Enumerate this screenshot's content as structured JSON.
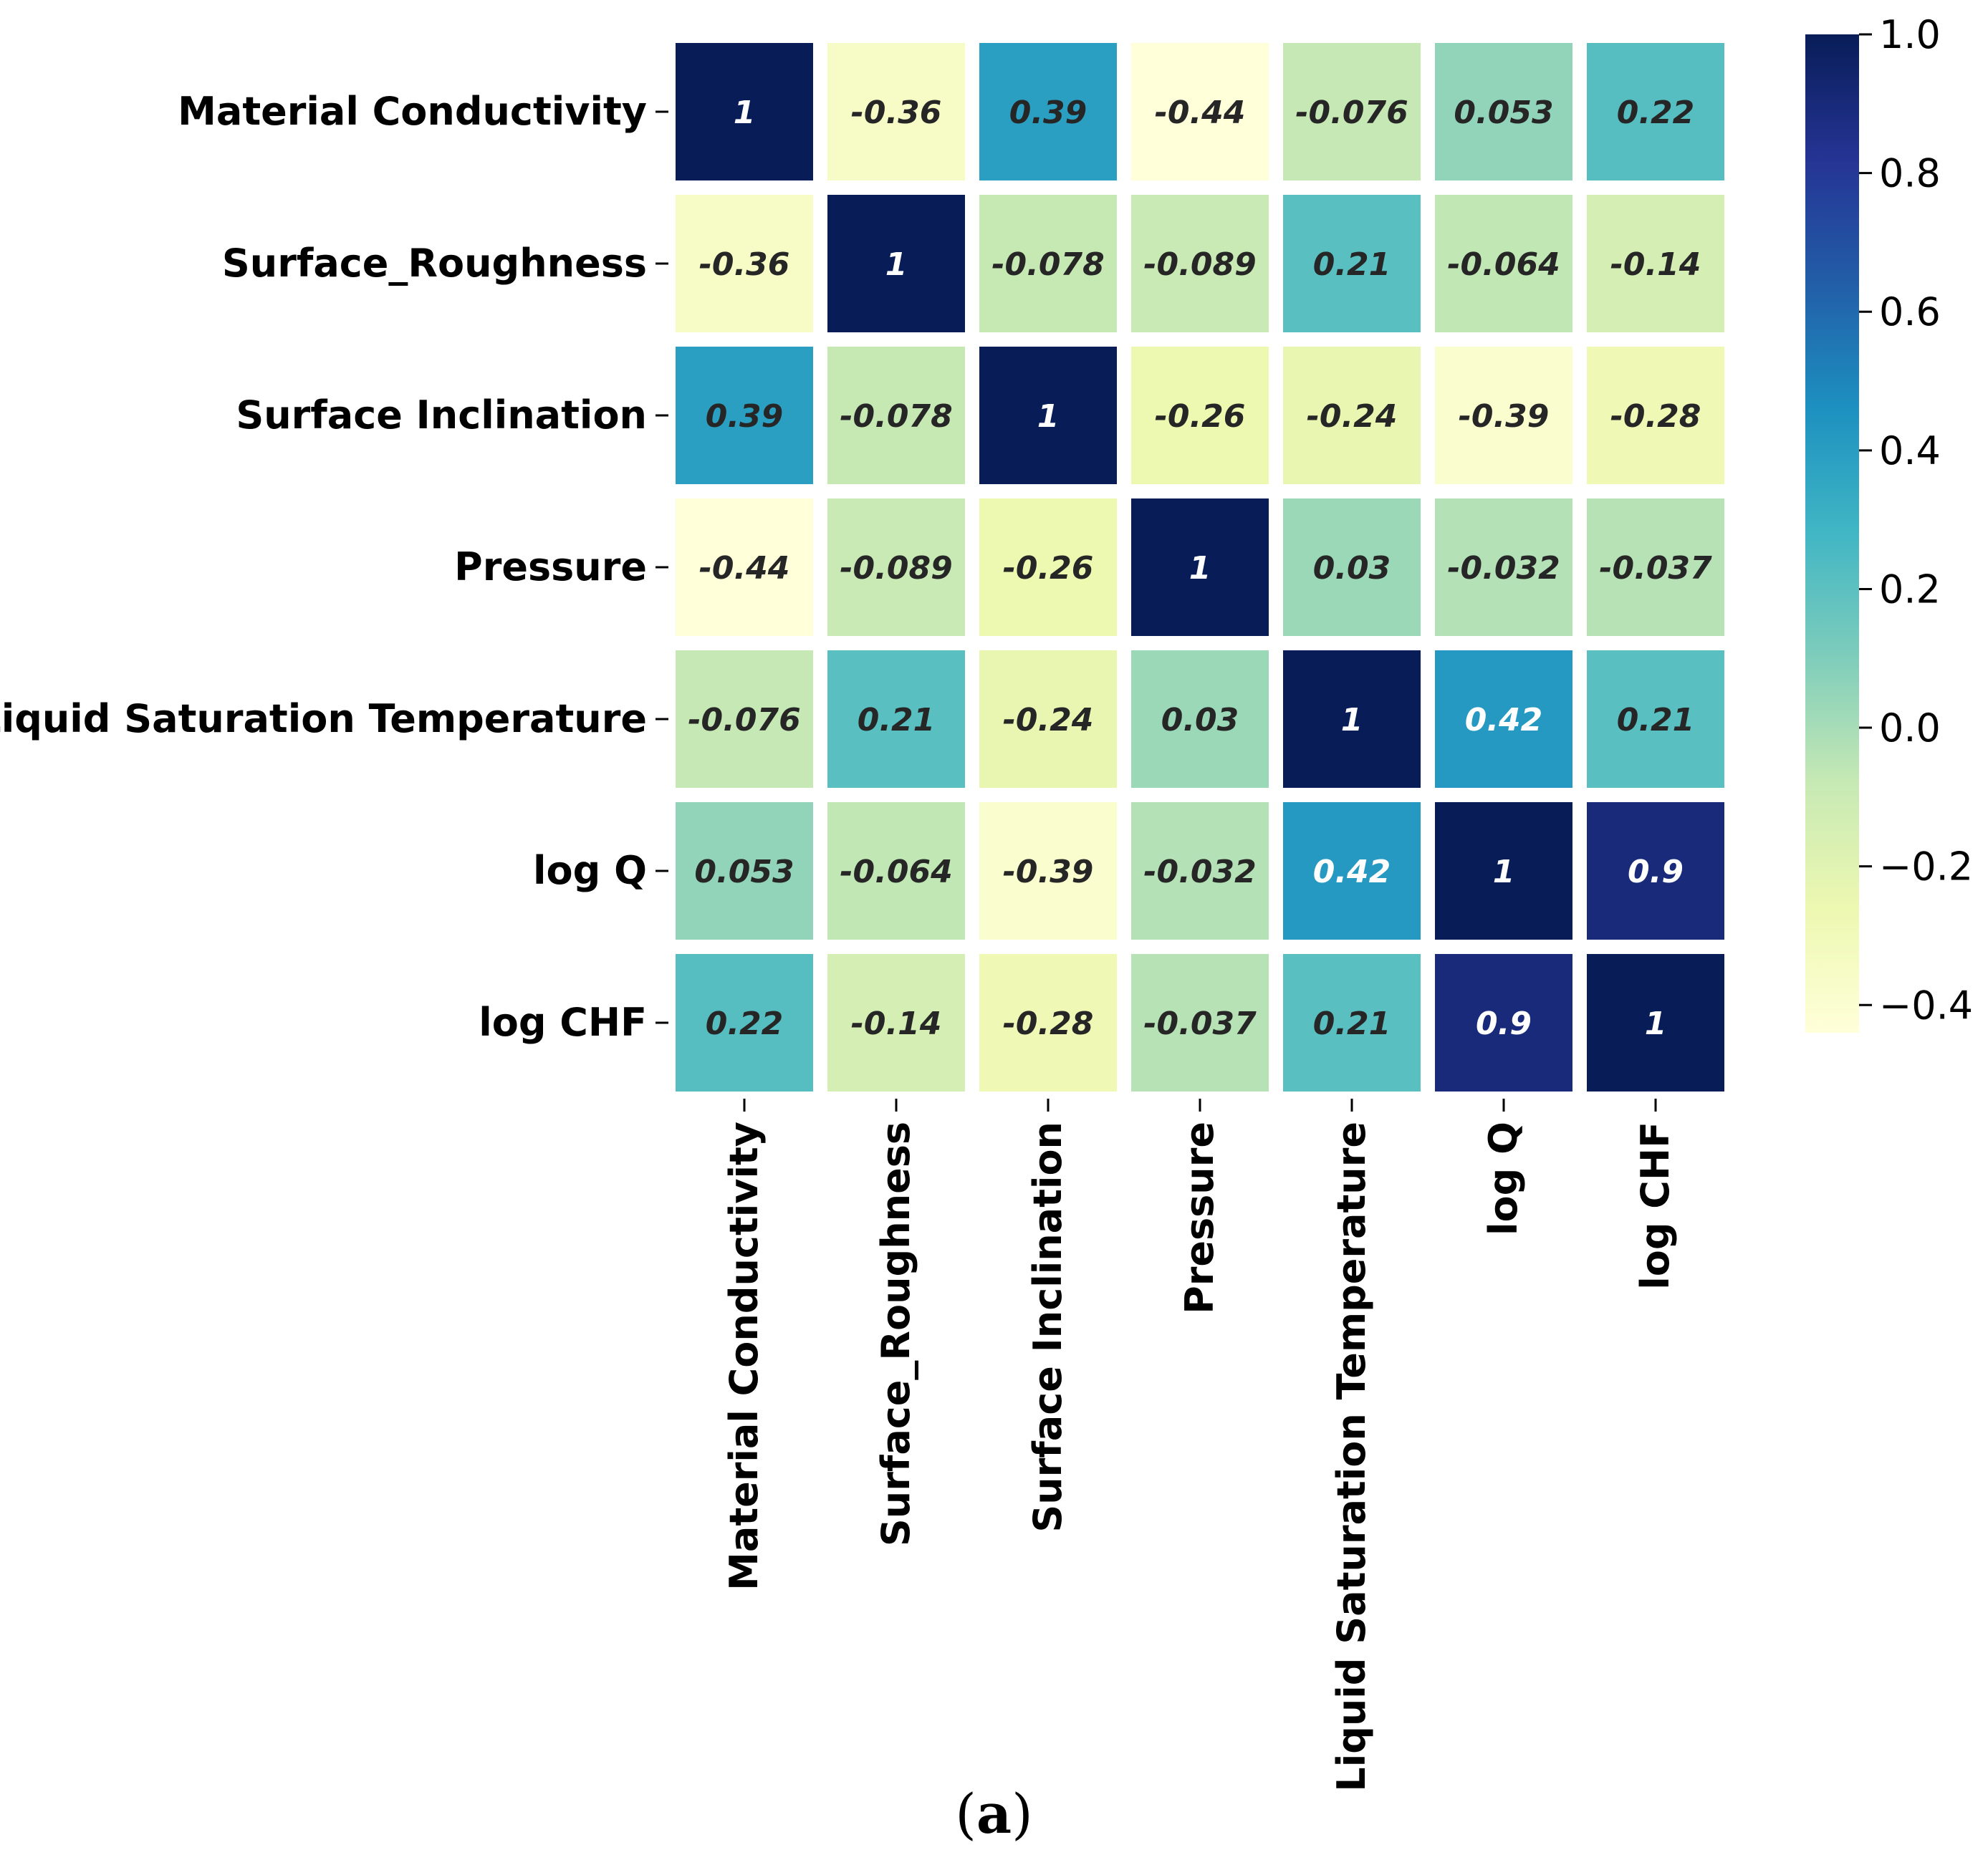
{
  "chart_data": {
    "type": "heatmap",
    "title": "",
    "xlabel": "",
    "ylabel": "",
    "row_labels": [
      "Material Conductivity",
      "Surface_Roughness",
      "Surface Inclination",
      "Pressure",
      "Liquid Saturation Temperature",
      "log Q",
      "log CHF"
    ],
    "col_labels": [
      "Material Conductivity",
      "Surface_Roughness",
      "Surface Inclination",
      "Pressure",
      "Liquid Saturation Temperature",
      "log Q",
      "log CHF"
    ],
    "values": [
      [
        1,
        -0.36,
        0.39,
        -0.44,
        -0.076,
        0.053,
        0.22
      ],
      [
        -0.36,
        1,
        -0.078,
        -0.089,
        0.21,
        -0.064,
        -0.14
      ],
      [
        0.39,
        -0.078,
        1,
        -0.26,
        -0.24,
        -0.39,
        -0.28
      ],
      [
        -0.44,
        -0.089,
        -0.26,
        1,
        0.03,
        -0.032,
        -0.037
      ],
      [
        -0.076,
        0.21,
        -0.24,
        0.03,
        1,
        0.42,
        0.21
      ],
      [
        0.053,
        -0.064,
        -0.39,
        -0.032,
        0.42,
        1,
        0.9
      ],
      [
        0.22,
        -0.14,
        -0.28,
        -0.037,
        0.21,
        0.9,
        1
      ]
    ],
    "annotations": [
      [
        "1",
        "-0.36",
        "0.39",
        "-0.44",
        "-0.076",
        "0.053",
        "0.22"
      ],
      [
        "-0.36",
        "1",
        "-0.078",
        "-0.089",
        "0.21",
        "-0.064",
        "-0.14"
      ],
      [
        "0.39",
        "-0.078",
        "1",
        "-0.26",
        "-0.24",
        "-0.39",
        "-0.28"
      ],
      [
        "-0.44",
        "-0.089",
        "-0.26",
        "1",
        "0.03",
        "-0.032",
        "-0.037"
      ],
      [
        "-0.076",
        "0.21",
        "-0.24",
        "0.03",
        "1",
        "0.42",
        "0.21"
      ],
      [
        "0.053",
        "-0.064",
        "-0.39",
        "-0.032",
        "0.42",
        "1",
        "0.9"
      ],
      [
        "0.22",
        "-0.14",
        "-0.28",
        "-0.037",
        "0.21",
        "0.9",
        "1"
      ]
    ],
    "colormap": "YlGnBu",
    "colormap_stops": [
      "#ffffd9",
      "#edf8b1",
      "#c7e9b4",
      "#7fcdbb",
      "#41b6c4",
      "#1d91c0",
      "#225ea8",
      "#253494",
      "#081d58"
    ],
    "vmin": -0.44,
    "vmax": 1.0,
    "grid": false,
    "colorbar": {
      "ticks": [
        1.0,
        0.8,
        0.6,
        0.4,
        0.2,
        0.0,
        -0.2,
        -0.4
      ],
      "tick_labels": [
        "1.0",
        "0.8",
        "0.6",
        "0.4",
        "0.2",
        "0.0",
        "−0.2",
        "−0.4"
      ],
      "placement": "right"
    }
  },
  "caption": {
    "open": "(",
    "letter": "a",
    "close": ")"
  }
}
